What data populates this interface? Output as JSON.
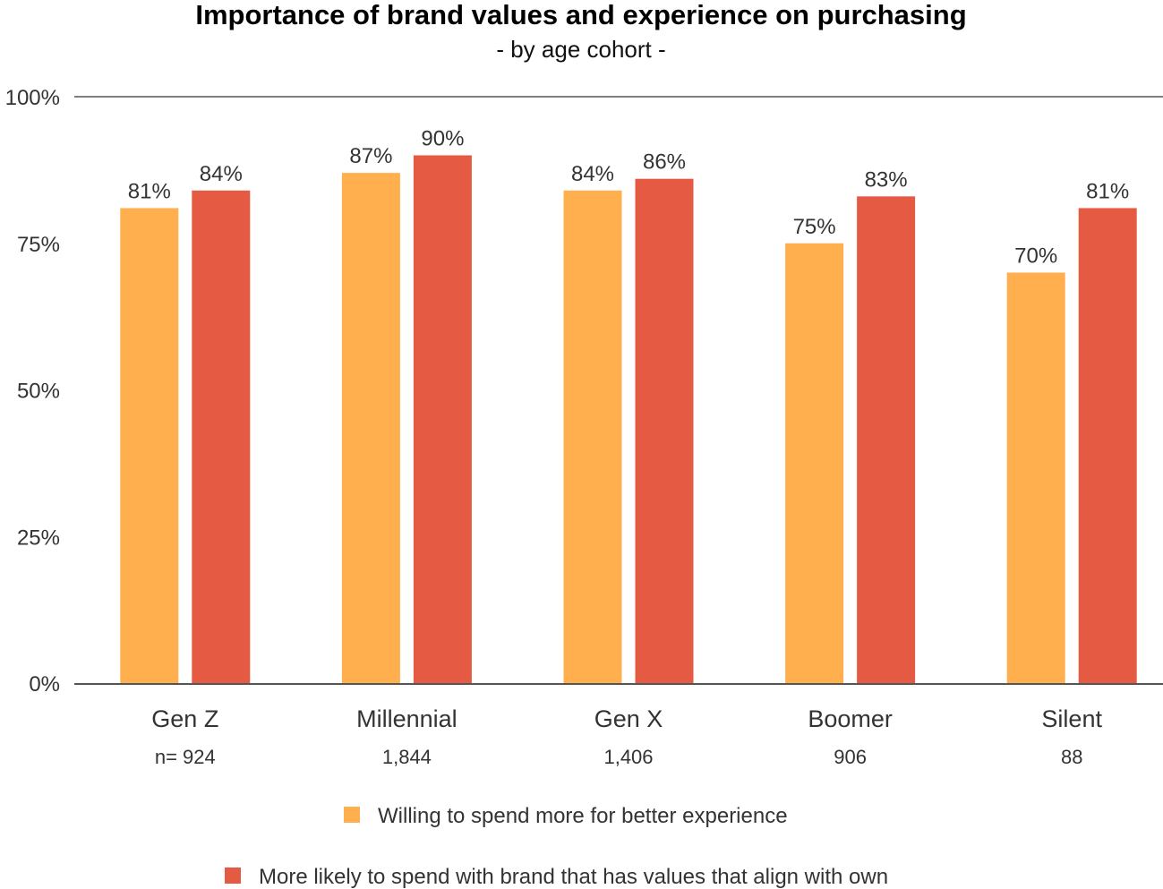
{
  "chart_data": {
    "type": "bar",
    "title": "Importance of brand values and experience on purchasing",
    "subtitle": "- by age cohort -",
    "categories": [
      "Gen Z",
      "Millennial",
      "Gen X",
      "Boomer",
      "Silent"
    ],
    "sample_sizes": [
      "n= 924",
      "1,844",
      "1,406",
      "906",
      "88"
    ],
    "series": [
      {
        "name": "Willing to spend more for better experience",
        "color": "#FFAF4E",
        "values": [
          81,
          87,
          84,
          75,
          70
        ],
        "labels": [
          "81%",
          "87%",
          "84%",
          "75%",
          "70%"
        ]
      },
      {
        "name": "More likely to spend with brand that has values that align with own",
        "color": "#E55A42",
        "values": [
          84,
          90,
          86,
          83,
          81
        ],
        "labels": [
          "84%",
          "90%",
          "86%",
          "83%",
          "81%"
        ]
      }
    ],
    "ylim": [
      0,
      100
    ],
    "yticks": [
      0,
      25,
      50,
      75,
      100
    ],
    "ytick_labels": [
      "0%",
      "25%",
      "50%",
      "75%",
      "100%"
    ],
    "xlabel": "",
    "ylabel": "",
    "grid": false,
    "legend_position": "bottom-center"
  }
}
